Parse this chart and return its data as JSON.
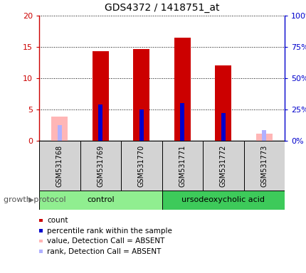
{
  "title": "GDS4372 / 1418751_at",
  "samples": [
    "GSM531768",
    "GSM531769",
    "GSM531770",
    "GSM531771",
    "GSM531772",
    "GSM531773"
  ],
  "count_values": [
    0,
    14.3,
    14.7,
    16.5,
    12.0,
    0
  ],
  "count_absent": [
    3.9,
    0,
    0,
    0,
    0,
    1.1
  ],
  "percentile_values": [
    0,
    5.8,
    5.0,
    6.0,
    4.4,
    0
  ],
  "percentile_absent": [
    2.5,
    0,
    0,
    0,
    0,
    1.7
  ],
  "ylim_left": [
    0,
    20
  ],
  "ylim_right": [
    0,
    100
  ],
  "yticks_left": [
    0,
    5,
    10,
    15,
    20
  ],
  "yticks_right": [
    0,
    25,
    50,
    75,
    100
  ],
  "ytick_labels_left": [
    "0",
    "5",
    "10",
    "15",
    "20"
  ],
  "ytick_labels_right": [
    "0%",
    "25%",
    "50%",
    "75%",
    "100%"
  ],
  "groups": [
    {
      "label": "control",
      "samples": [
        0,
        1,
        2
      ],
      "color": "#90ee90"
    },
    {
      "label": "ursodeoxycholic acid",
      "samples": [
        3,
        4,
        5
      ],
      "color": "#3dca5a"
    }
  ],
  "group_label": "growth protocol",
  "bar_color_count": "#cc0000",
  "bar_color_count_absent": "#ffb6b6",
  "bar_color_rank": "#0000cc",
  "bar_color_rank_absent": "#b0b0ff",
  "background_color": "#ffffff",
  "plot_bg_color": "#ffffff",
  "tick_label_color_left": "#cc0000",
  "tick_label_color_right": "#0000cc",
  "grid_color": "#000000",
  "bar_width": 0.4,
  "rank_bar_width": 0.1,
  "legend_items": [
    {
      "color": "#cc0000",
      "label": "count"
    },
    {
      "color": "#0000cc",
      "label": "percentile rank within the sample"
    },
    {
      "color": "#ffb6b6",
      "label": "value, Detection Call = ABSENT"
    },
    {
      "color": "#b0b0ff",
      "label": "rank, Detection Call = ABSENT"
    }
  ]
}
